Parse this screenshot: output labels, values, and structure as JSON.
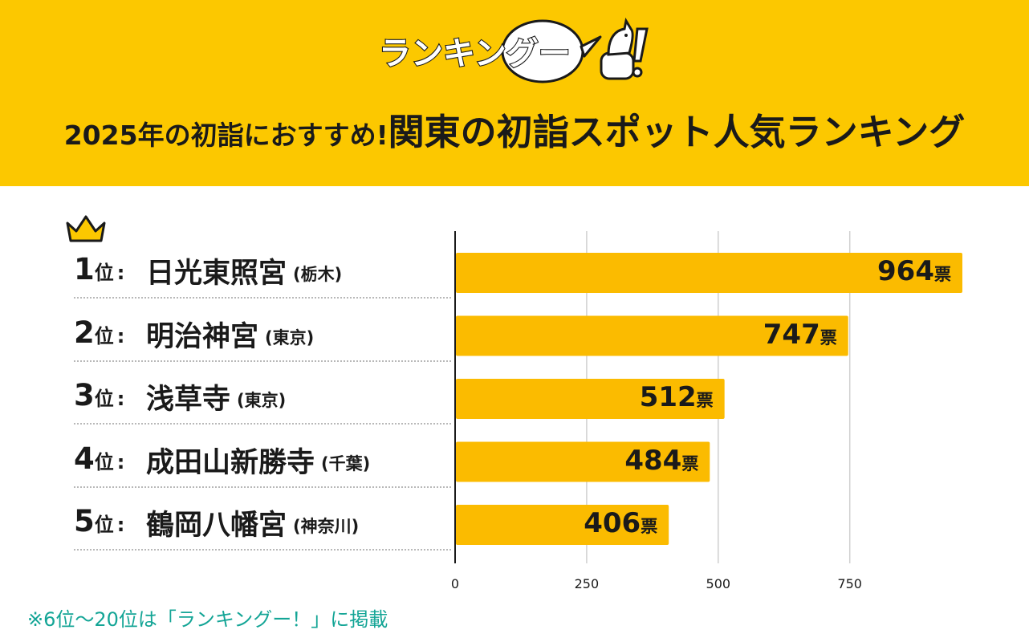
{
  "header": {
    "logo_text": "ランキングー!",
    "headline_sub": "2025年の初詣におすすめ!",
    "headline_main": "関東の初詣スポット人気ランキング"
  },
  "colors": {
    "header_bg": "#fcc800",
    "bar": "#fbbb00",
    "footnote": "#14a596"
  },
  "chart_data": {
    "type": "bar",
    "orientation": "horizontal",
    "title": "2025年の初詣におすすめ!関東の初詣スポット人気ランキング",
    "categories": [
      "日光東照宮（栃木）",
      "明治神宮（東京）",
      "浅草寺（東京）",
      "成田山新勝寺（千葉）",
      "鶴岡八幡宮（神奈川）"
    ],
    "values": [
      964,
      747,
      512,
      484,
      406
    ],
    "value_unit": "票",
    "xlim": [
      0,
      964
    ],
    "xticks": [
      0,
      250,
      500,
      750
    ],
    "grid": true,
    "rows": [
      {
        "rank": "1",
        "rank_unit": "位",
        "name": "日光東照宮",
        "pref": "(栃木)",
        "value": 964
      },
      {
        "rank": "2",
        "rank_unit": "位",
        "name": "明治神宮",
        "pref": "(東京)",
        "value": 747
      },
      {
        "rank": "3",
        "rank_unit": "位",
        "name": "浅草寺",
        "pref": "(東京)",
        "value": 512
      },
      {
        "rank": "4",
        "rank_unit": "位",
        "name": "成田山新勝寺",
        "pref": "(千葉)",
        "value": 484
      },
      {
        "rank": "5",
        "rank_unit": "位",
        "name": "鶴岡八幡宮",
        "pref": "(神奈川)",
        "value": 406
      }
    ]
  },
  "footnote": "※6位〜20位は「ランキングー！」に掲載"
}
